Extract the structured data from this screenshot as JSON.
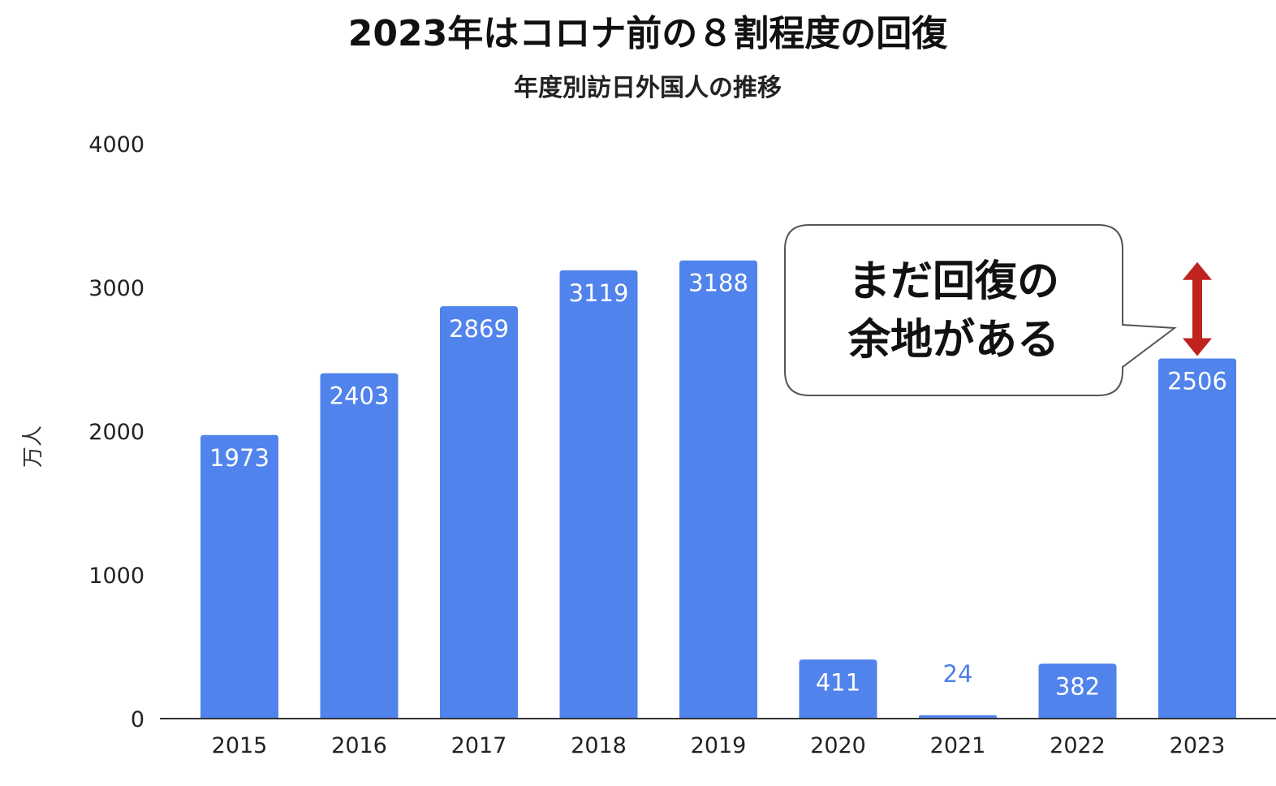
{
  "chart_data": {
    "type": "bar",
    "title": "2023年はコロナ前の８割程度の回復",
    "subtitle": "年度別訪日外国人の推移",
    "xlabel": "",
    "ylabel": "万人",
    "categories": [
      "2015",
      "2016",
      "2017",
      "2018",
      "2019",
      "2020",
      "2021",
      "2022",
      "2023"
    ],
    "values": [
      1973,
      2403,
      2869,
      3119,
      3188,
      411,
      24,
      382,
      2506
    ],
    "ylim": [
      0,
      4000
    ],
    "yticks": [
      0,
      1000,
      2000,
      3000,
      4000
    ],
    "grid": false,
    "legend": "none",
    "bar_color": "#5183ec",
    "annotations": [
      {
        "type": "callout",
        "lines": [
          "まだ回復の",
          "余地がある"
        ],
        "target_category": "2023"
      },
      {
        "type": "double-arrow",
        "category": "2023",
        "color": "#c0231e",
        "from_value": 2506,
        "to_value": 3188
      }
    ]
  }
}
